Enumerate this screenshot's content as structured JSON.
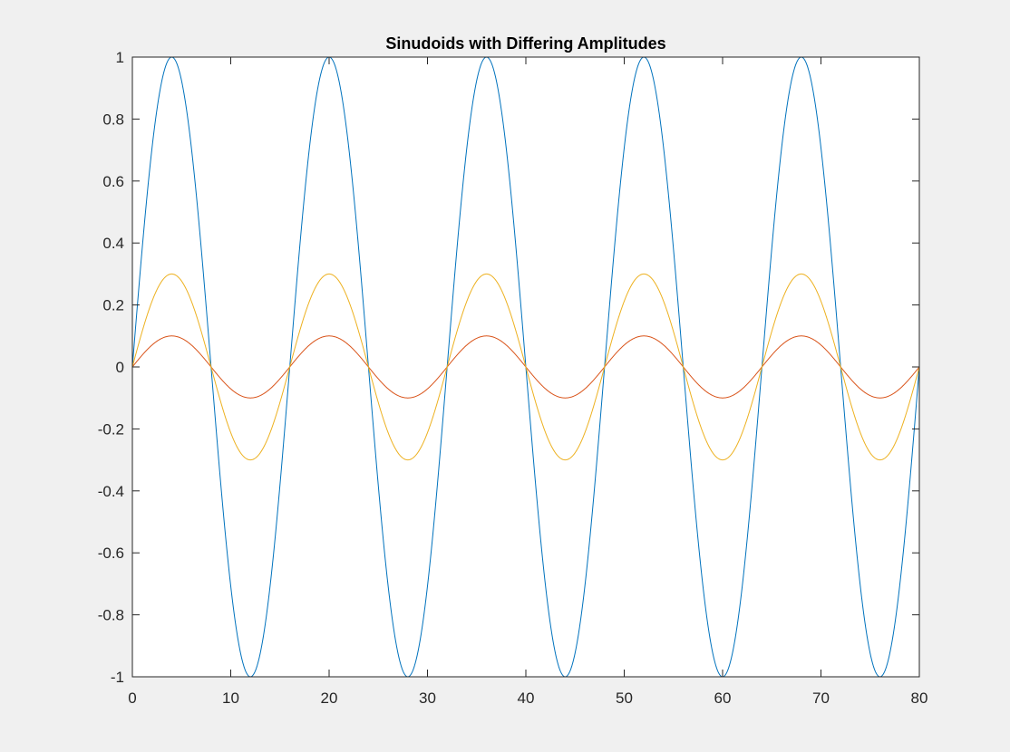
{
  "chart_data": {
    "type": "line",
    "title": "Sinudoids with Differing Amplitudes",
    "xlabel": "",
    "ylabel": "",
    "xlim": [
      0,
      80
    ],
    "ylim": [
      -1,
      1
    ],
    "grid": false,
    "legend": false,
    "x_ticks": [
      0,
      10,
      20,
      30,
      40,
      50,
      60,
      70,
      80
    ],
    "x_tick_labels": [
      "0",
      "10",
      "20",
      "30",
      "40",
      "50",
      "60",
      "70",
      "80"
    ],
    "y_ticks": [
      -1,
      -0.8,
      -0.6,
      -0.4,
      -0.2,
      0,
      0.2,
      0.4,
      0.6,
      0.8,
      1
    ],
    "y_tick_labels": [
      "-1",
      "-0.8",
      "-0.6",
      "-0.4",
      "-0.2",
      "0",
      "0.2",
      "0.4",
      "0.6",
      "0.8",
      "1"
    ],
    "x": [
      0,
      2,
      4,
      6,
      8,
      10,
      12,
      14,
      16,
      18,
      20,
      22,
      24,
      26,
      28,
      30,
      32,
      34,
      36,
      38,
      40,
      42,
      44,
      46,
      48,
      50,
      52,
      54,
      56,
      58,
      60,
      62,
      64,
      66,
      68,
      70,
      72,
      74,
      76,
      78,
      80
    ],
    "series": [
      {
        "color": "#0072bd",
        "amplitude": 1,
        "period": 16,
        "values": [
          0,
          0.707,
          1,
          0.707,
          0,
          -0.707,
          -1,
          -0.707,
          0,
          0.707,
          1,
          0.707,
          0,
          -0.707,
          -1,
          -0.707,
          0,
          0.707,
          1,
          0.707,
          0,
          -0.707,
          -1,
          -0.707,
          0,
          0.707,
          1,
          0.707,
          0,
          -0.707,
          -1,
          -0.707,
          0,
          0.707,
          1,
          0.707,
          0,
          -0.707,
          -1,
          -0.707,
          0
        ]
      },
      {
        "color": "#d95319",
        "amplitude": 0.1,
        "period": 16,
        "values": [
          0,
          0.071,
          0.1,
          0.071,
          0,
          -0.071,
          -0.1,
          -0.071,
          0,
          0.071,
          0.1,
          0.071,
          0,
          -0.071,
          -0.1,
          -0.071,
          0,
          0.071,
          0.1,
          0.071,
          0,
          -0.071,
          -0.1,
          -0.071,
          0,
          0.071,
          0.1,
          0.071,
          0,
          -0.071,
          -0.1,
          -0.071,
          0,
          0.071,
          0.1,
          0.071,
          0,
          -0.071,
          -0.1,
          -0.071,
          0
        ]
      },
      {
        "color": "#edb120",
        "amplitude": 0.3,
        "period": 16,
        "values": [
          0,
          0.212,
          0.3,
          0.212,
          0,
          -0.212,
          -0.3,
          -0.212,
          0,
          0.212,
          0.3,
          0.212,
          0,
          -0.212,
          -0.3,
          -0.212,
          0,
          0.212,
          0.3,
          0.212,
          0,
          -0.212,
          -0.3,
          -0.212,
          0,
          0.212,
          0.3,
          0.212,
          0,
          -0.212,
          -0.3,
          -0.212,
          0,
          0.212,
          0.3,
          0.212,
          0,
          -0.212,
          -0.3,
          -0.212,
          0
        ]
      }
    ]
  },
  "colors": {
    "background": "#f0f0f0",
    "axes_background": "#ffffff",
    "axis_line": "#262626"
  }
}
